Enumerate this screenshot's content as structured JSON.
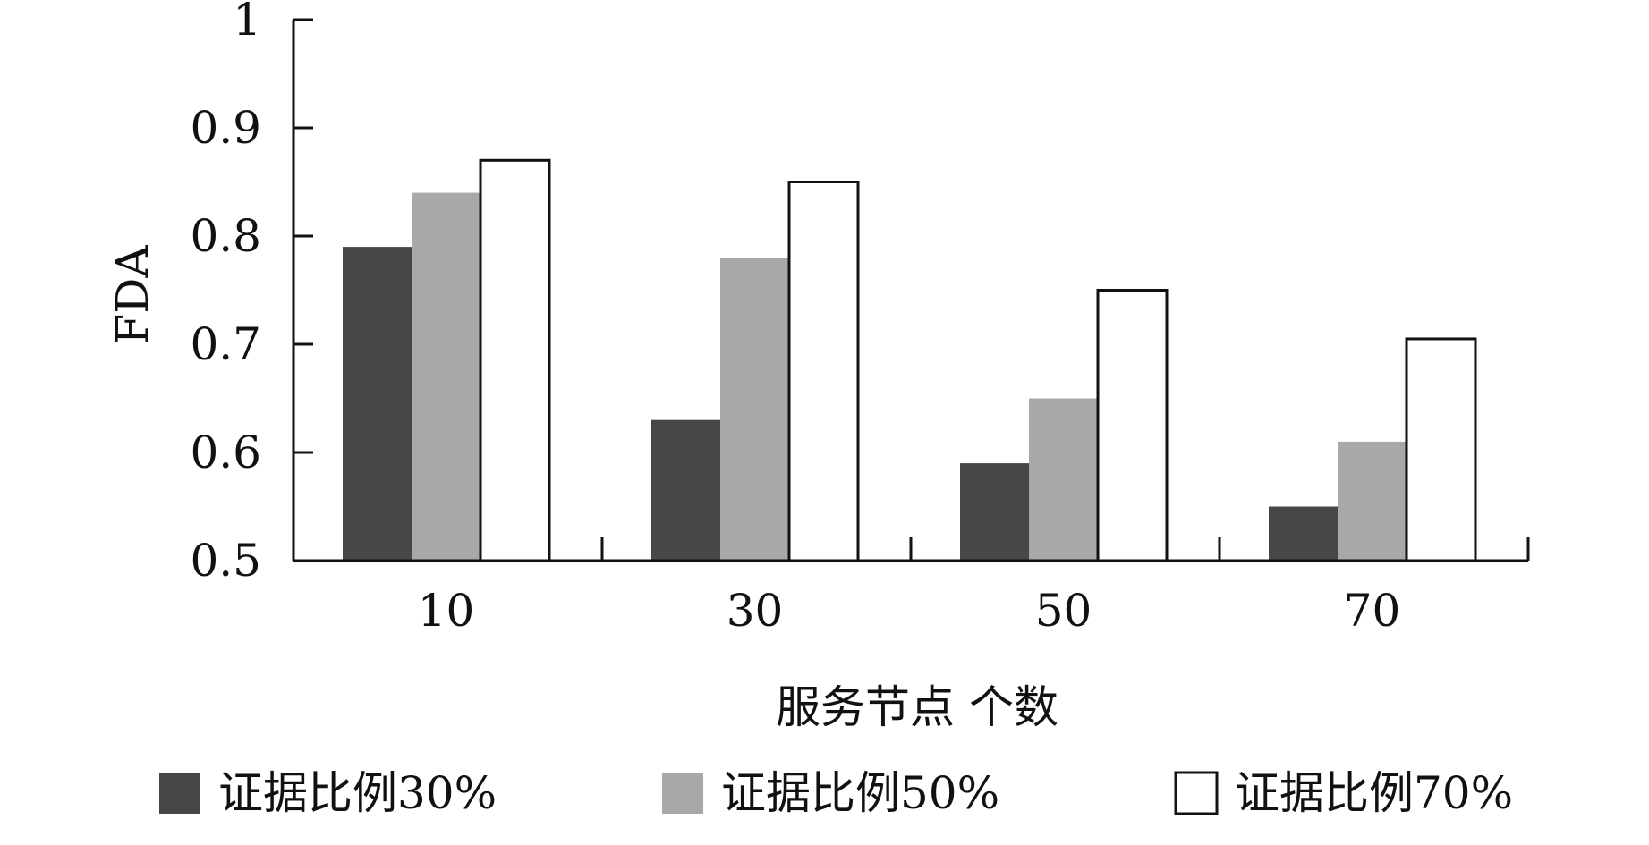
{
  "chart_data": {
    "type": "bar",
    "xlabel": "服务节点 个数",
    "ylabel": "FDA",
    "categories": [
      "10",
      "30",
      "50",
      "70"
    ],
    "ylim": [
      0.5,
      1
    ],
    "yticks": [
      "0.5",
      "0.6",
      "0.7",
      "0.8",
      "0.9",
      "1"
    ],
    "series": [
      {
        "name": "证据比例30%",
        "values": [
          0.79,
          0.63,
          0.59,
          0.55
        ],
        "color": "#474747"
      },
      {
        "name": "证据比例50%",
        "values": [
          0.84,
          0.78,
          0.65,
          0.61
        ],
        "color": "#a8a8a8"
      },
      {
        "name": "证据比例70%",
        "values": [
          0.87,
          0.85,
          0.75,
          0.705
        ],
        "color": "#ffffff"
      }
    ],
    "legend_position": "bottom",
    "grid": false
  }
}
